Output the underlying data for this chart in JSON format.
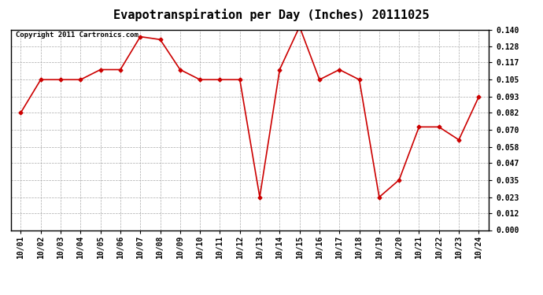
{
  "title": "Evapotranspiration per Day (Inches) 20111025",
  "copyright": "Copyright 2011 Cartronics.com",
  "x_labels": [
    "10/01",
    "10/02",
    "10/03",
    "10/04",
    "10/05",
    "10/06",
    "10/07",
    "10/08",
    "10/09",
    "10/10",
    "10/11",
    "10/12",
    "10/13",
    "10/14",
    "10/15",
    "10/16",
    "10/17",
    "10/18",
    "10/19",
    "10/20",
    "10/21",
    "10/22",
    "10/23",
    "10/24"
  ],
  "y_values": [
    0.082,
    0.105,
    0.105,
    0.105,
    0.112,
    0.112,
    0.135,
    0.133,
    0.112,
    0.105,
    0.105,
    0.105,
    0.023,
    0.112,
    0.142,
    0.105,
    0.112,
    0.105,
    0.023,
    0.035,
    0.072,
    0.072,
    0.063,
    0.093
  ],
  "y_ticks": [
    0.0,
    0.012,
    0.023,
    0.035,
    0.047,
    0.058,
    0.07,
    0.082,
    0.093,
    0.105,
    0.117,
    0.128,
    0.14
  ],
  "y_min": 0.0,
  "y_max": 0.14,
  "line_color": "#cc0000",
  "marker": "D",
  "marker_size": 2.5,
  "background_color": "#ffffff",
  "grid_color": "#aaaaaa",
  "title_fontsize": 11,
  "copyright_fontsize": 6.5,
  "tick_fontsize": 7,
  "figure_width": 6.9,
  "figure_height": 3.75,
  "dpi": 100
}
